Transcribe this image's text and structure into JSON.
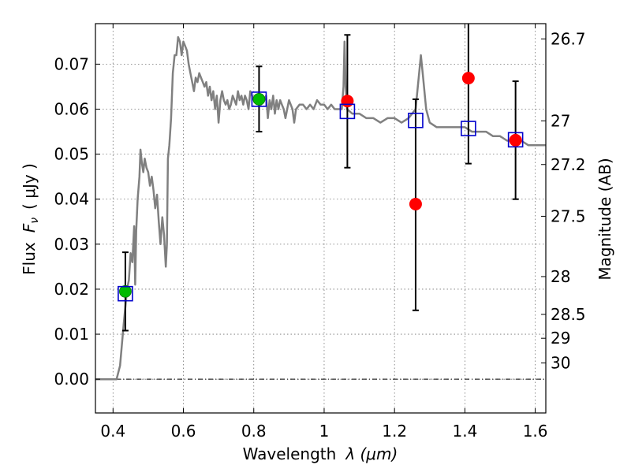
{
  "chart_data": {
    "type": "scatter",
    "title": "",
    "xlabel_text": "Wavelength",
    "xlabel_math": "λ (μm)",
    "ylabel_text": "Flux",
    "ylabel_math": "( μJy )",
    "ylabel_math_var": "F",
    "ylabel_math_sub": "ν",
    "y2label": "Magnitude (AB)",
    "xlim": [
      0.35,
      1.63
    ],
    "ylim": [
      -0.0075,
      0.079
    ],
    "xticks": [
      0.4,
      0.6,
      0.8,
      1.0,
      1.2,
      1.4,
      1.6
    ],
    "xtick_labels": [
      "0.4",
      "0.6",
      "0.8",
      "1",
      "1.2",
      "1.4",
      "1.6"
    ],
    "yticks": [
      0.0,
      0.01,
      0.02,
      0.03,
      0.04,
      0.05,
      0.06,
      0.07
    ],
    "ytick_labels": [
      "0.00",
      "0.01",
      "0.02",
      "0.03",
      "0.04",
      "0.05",
      "0.06",
      "0.07"
    ],
    "y2ticks": [
      {
        "label": "26.7",
        "flux": 0.0756
      },
      {
        "label": "27",
        "flux": 0.0574
      },
      {
        "label": "27.2",
        "flux": 0.0477
      },
      {
        "label": "27.5",
        "flux": 0.0362
      },
      {
        "label": "28",
        "flux": 0.0228
      },
      {
        "label": "28.5",
        "flux": 0.0144
      },
      {
        "label": "29",
        "flux": 0.0091
      },
      {
        "label": "30",
        "flux": 0.0036
      }
    ],
    "grid": true,
    "zero_line": true,
    "model_spectrum": {
      "color": "#808080",
      "points": [
        [
          0.35,
          0.0
        ],
        [
          0.41,
          0.0
        ],
        [
          0.42,
          0.003
        ],
        [
          0.43,
          0.012
        ],
        [
          0.44,
          0.02
        ],
        [
          0.445,
          0.022
        ],
        [
          0.45,
          0.028
        ],
        [
          0.455,
          0.026
        ],
        [
          0.46,
          0.034
        ],
        [
          0.463,
          0.021
        ],
        [
          0.466,
          0.033
        ],
        [
          0.47,
          0.04
        ],
        [
          0.475,
          0.045
        ],
        [
          0.478,
          0.051
        ],
        [
          0.482,
          0.048
        ],
        [
          0.486,
          0.046
        ],
        [
          0.49,
          0.049
        ],
        [
          0.495,
          0.047
        ],
        [
          0.5,
          0.046
        ],
        [
          0.505,
          0.043
        ],
        [
          0.51,
          0.045
        ],
        [
          0.515,
          0.042
        ],
        [
          0.52,
          0.038
        ],
        [
          0.525,
          0.041
        ],
        [
          0.53,
          0.035
        ],
        [
          0.535,
          0.03
        ],
        [
          0.54,
          0.036
        ],
        [
          0.545,
          0.032
        ],
        [
          0.55,
          0.025
        ],
        [
          0.553,
          0.03
        ],
        [
          0.556,
          0.049
        ],
        [
          0.56,
          0.052
        ],
        [
          0.565,
          0.058
        ],
        [
          0.57,
          0.068
        ],
        [
          0.575,
          0.072
        ],
        [
          0.58,
          0.072
        ],
        [
          0.585,
          0.076
        ],
        [
          0.59,
          0.075
        ],
        [
          0.595,
          0.072
        ],
        [
          0.6,
          0.075
        ],
        [
          0.605,
          0.074
        ],
        [
          0.61,
          0.073
        ],
        [
          0.615,
          0.07
        ],
        [
          0.62,
          0.068
        ],
        [
          0.625,
          0.066
        ],
        [
          0.63,
          0.064
        ],
        [
          0.635,
          0.067
        ],
        [
          0.64,
          0.066
        ],
        [
          0.645,
          0.068
        ],
        [
          0.65,
          0.067
        ],
        [
          0.655,
          0.066
        ],
        [
          0.66,
          0.065
        ],
        [
          0.665,
          0.066
        ],
        [
          0.67,
          0.063
        ],
        [
          0.675,
          0.065
        ],
        [
          0.68,
          0.062
        ],
        [
          0.685,
          0.064
        ],
        [
          0.69,
          0.06
        ],
        [
          0.695,
          0.063
        ],
        [
          0.7,
          0.057
        ],
        [
          0.705,
          0.062
        ],
        [
          0.71,
          0.064
        ],
        [
          0.715,
          0.062
        ],
        [
          0.72,
          0.061
        ],
        [
          0.725,
          0.062
        ],
        [
          0.73,
          0.06
        ],
        [
          0.735,
          0.061
        ],
        [
          0.74,
          0.063
        ],
        [
          0.745,
          0.062
        ],
        [
          0.75,
          0.061
        ],
        [
          0.755,
          0.064
        ],
        [
          0.76,
          0.062
        ],
        [
          0.765,
          0.063
        ],
        [
          0.77,
          0.061
        ],
        [
          0.775,
          0.063
        ],
        [
          0.78,
          0.062
        ],
        [
          0.785,
          0.06
        ],
        [
          0.79,
          0.064
        ],
        [
          0.795,
          0.063
        ],
        [
          0.8,
          0.062
        ],
        [
          0.81,
          0.062
        ],
        [
          0.82,
          0.061
        ],
        [
          0.83,
          0.062
        ],
        [
          0.835,
          0.063
        ],
        [
          0.84,
          0.058
        ],
        [
          0.845,
          0.062
        ],
        [
          0.85,
          0.06
        ],
        [
          0.855,
          0.063
        ],
        [
          0.86,
          0.059
        ],
        [
          0.865,
          0.062
        ],
        [
          0.87,
          0.06
        ],
        [
          0.875,
          0.062
        ],
        [
          0.88,
          0.061
        ],
        [
          0.885,
          0.06
        ],
        [
          0.89,
          0.058
        ],
        [
          0.895,
          0.06
        ],
        [
          0.9,
          0.062
        ],
        [
          0.905,
          0.061
        ],
        [
          0.91,
          0.06
        ],
        [
          0.915,
          0.057
        ],
        [
          0.92,
          0.06
        ],
        [
          0.93,
          0.061
        ],
        [
          0.94,
          0.061
        ],
        [
          0.95,
          0.06
        ],
        [
          0.96,
          0.061
        ],
        [
          0.97,
          0.06
        ],
        [
          0.98,
          0.062
        ],
        [
          0.99,
          0.061
        ],
        [
          1.0,
          0.061
        ],
        [
          1.01,
          0.06
        ],
        [
          1.02,
          0.061
        ],
        [
          1.03,
          0.06
        ],
        [
          1.04,
          0.06
        ],
        [
          1.05,
          0.06
        ],
        [
          1.055,
          0.065
        ],
        [
          1.058,
          0.075
        ],
        [
          1.061,
          0.065
        ],
        [
          1.065,
          0.06
        ],
        [
          1.08,
          0.059
        ],
        [
          1.1,
          0.059
        ],
        [
          1.12,
          0.058
        ],
        [
          1.14,
          0.058
        ],
        [
          1.16,
          0.057
        ],
        [
          1.18,
          0.058
        ],
        [
          1.2,
          0.058
        ],
        [
          1.22,
          0.057
        ],
        [
          1.24,
          0.058
        ],
        [
          1.25,
          0.059
        ],
        [
          1.26,
          0.06
        ],
        [
          1.27,
          0.068
        ],
        [
          1.275,
          0.072
        ],
        [
          1.28,
          0.068
        ],
        [
          1.29,
          0.06
        ],
        [
          1.3,
          0.057
        ],
        [
          1.32,
          0.056
        ],
        [
          1.34,
          0.056
        ],
        [
          1.36,
          0.056
        ],
        [
          1.38,
          0.056
        ],
        [
          1.4,
          0.056
        ],
        [
          1.42,
          0.055
        ],
        [
          1.44,
          0.055
        ],
        [
          1.46,
          0.055
        ],
        [
          1.48,
          0.054
        ],
        [
          1.5,
          0.054
        ],
        [
          1.52,
          0.053
        ],
        [
          1.54,
          0.053
        ],
        [
          1.56,
          0.053
        ],
        [
          1.58,
          0.052
        ],
        [
          1.6,
          0.052
        ],
        [
          1.63,
          0.052
        ]
      ]
    },
    "observed_red": {
      "color": "#ff0000",
      "points": [
        {
          "x": 1.066,
          "y": 0.0618,
          "err_lo": 0.047,
          "err_hi": 0.0765
        },
        {
          "x": 1.26,
          "y": 0.0389,
          "err_lo": 0.0153,
          "err_hi": 0.0622
        },
        {
          "x": 1.41,
          "y": 0.0669,
          "err_lo": 0.0479,
          "err_hi": 0.079
        },
        {
          "x": 1.544,
          "y": 0.0531,
          "err_lo": 0.04,
          "err_hi": 0.0662
        }
      ]
    },
    "observed_green": {
      "color": "#00bb00",
      "points": [
        {
          "x": 0.435,
          "y": 0.0195,
          "err_lo": 0.0108,
          "err_hi": 0.0282
        },
        {
          "x": 0.815,
          "y": 0.0622,
          "err_lo": 0.055,
          "err_hi": 0.0695
        }
      ]
    },
    "model_synthetic_squares": {
      "color": "#0000cc",
      "points": [
        {
          "x": 0.435,
          "y": 0.019
        },
        {
          "x": 0.815,
          "y": 0.0622
        },
        {
          "x": 1.066,
          "y": 0.0595
        },
        {
          "x": 1.26,
          "y": 0.0575
        },
        {
          "x": 1.41,
          "y": 0.0557
        },
        {
          "x": 1.544,
          "y": 0.0532
        }
      ]
    }
  }
}
